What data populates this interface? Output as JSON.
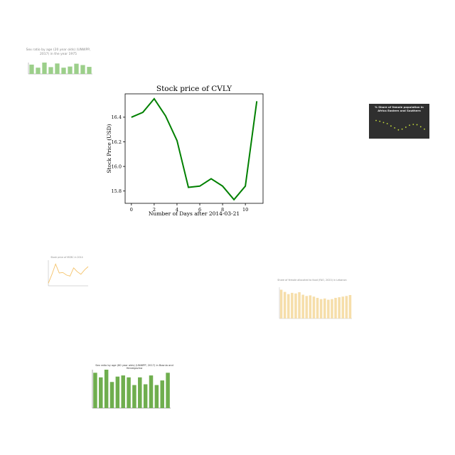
{
  "chart_data": [
    {
      "type": "line",
      "title": "Stock price of CVLY",
      "xlabel": "Number of Days after 2014-03-21",
      "ylabel": "Stock Price (USD)",
      "x": [
        0,
        1,
        2,
        3,
        4,
        5,
        6,
        7,
        8,
        9,
        10,
        11
      ],
      "values": [
        16.4,
        16.44,
        16.55,
        16.41,
        16.21,
        15.83,
        15.84,
        15.9,
        15.84,
        15.73,
        15.84,
        16.53
      ],
      "xlim": [
        -0.55,
        11.55
      ],
      "ylim": [
        15.7,
        16.59
      ],
      "xticks": [
        "0",
        "2",
        "4",
        "6",
        "8",
        "10"
      ],
      "yticks": [
        "15.8",
        "16.0",
        "16.2",
        "16.4"
      ],
      "line_color": "#008000",
      "grid": false
    },
    {
      "type": "bar",
      "title": "Sex ratio by age (20 year olds) (UNWPP, 2017) in the year 1975",
      "values": [
        0.82,
        0.55,
        1.0,
        0.6,
        0.92,
        0.55,
        0.65,
        0.9,
        0.78,
        0.62
      ],
      "bar_color": "#9ccf8a"
    },
    {
      "type": "scatter",
      "title": "% Share of female population in Africa Eastern and Southern",
      "values": [
        0.75,
        0.7,
        0.62,
        0.55,
        0.4,
        0.28,
        0.15,
        0.2,
        0.32,
        0.45,
        0.5,
        0.48,
        0.35,
        0.2
      ],
      "point_color": "#c8e03a",
      "background": "#2f2f2f"
    },
    {
      "type": "line",
      "title": "Stock price of MCBC in 2014",
      "values": [
        0.1,
        0.45,
        0.85,
        0.5,
        0.52,
        0.42,
        0.38,
        0.7,
        0.55,
        0.45,
        0.62,
        0.75
      ],
      "line_color": "#f5c36a"
    },
    {
      "type": "bar",
      "title": "Share of female allocated to food (FAO, 2020) in Lebanon",
      "values": [
        0.92,
        0.85,
        0.78,
        0.82,
        0.8,
        0.84,
        0.76,
        0.72,
        0.74,
        0.7,
        0.66,
        0.62,
        0.64,
        0.6,
        0.62,
        0.66,
        0.68,
        0.7,
        0.72,
        0.75
      ],
      "bar_color": "#f6deaa"
    },
    {
      "type": "bar",
      "title": "Sex ratio by age (80 year olds) (UNWPP, 2017) in Bosnia and Herzegovina",
      "values": [
        0.92,
        0.8,
        1.0,
        0.68,
        0.82,
        0.85,
        0.8,
        0.6,
        0.8,
        0.62,
        0.85,
        0.6,
        0.72,
        0.92
      ],
      "bar_color": "#6fae4e"
    }
  ]
}
